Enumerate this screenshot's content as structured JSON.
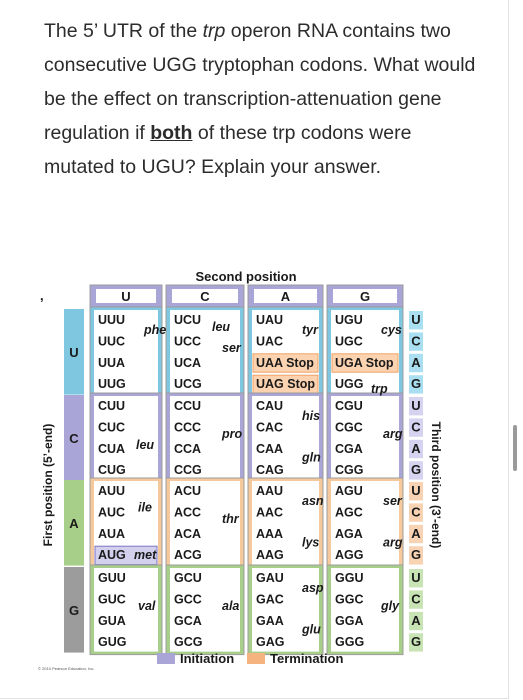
{
  "question": {
    "text_1": "The 5’ UTR of the ",
    "trp": "trp",
    "text_2": " operon RNA contains two consecutive UGG tryptophan codons. What would be the effect on transcription-attenuation gene regulation if ",
    "both": "both",
    "text_3": " of these trp codons were mutated to UGU? Explain your answer."
  },
  "figure": {
    "title": "Second position",
    "first_position_label": "First position (5’-end)",
    "third_position_label": "Third position (3’-end)",
    "bullet": ",",
    "second_bases": [
      "U",
      "C",
      "A",
      "G"
    ],
    "first_bases": [
      "U",
      "C",
      "A",
      "G"
    ],
    "third_bases": [
      "U",
      "C",
      "A",
      "G"
    ],
    "blocks": [
      [
        "UUU",
        "UUC",
        "UUA",
        "UUG",
        "UCU",
        "UCC",
        "UCA",
        "UCG",
        "UAU",
        "UAC",
        "UAA Stop",
        "UAG Stop",
        "UGU",
        "UGC",
        "UGA Stop",
        "UGG"
      ],
      [
        "CUU",
        "CUC",
        "CUA",
        "CUG",
        "CCU",
        "CCC",
        "CCA",
        "CCG",
        "CAU",
        "CAC",
        "CAA",
        "CAG",
        "CGU",
        "CGC",
        "CGA",
        "CGG"
      ],
      [
        "AUU",
        "AUC",
        "AUA",
        "AUG",
        "ACU",
        "ACC",
        "ACA",
        "ACG",
        "AAU",
        "AAC",
        "AAA",
        "AAG",
        "AGU",
        "AGC",
        "AGA",
        "AGG"
      ],
      [
        "GUU",
        "GUC",
        "GUA",
        "GUG",
        "GCU",
        "GCC",
        "GCA",
        "GCG",
        "GAU",
        "GAC",
        "GAA",
        "GAG",
        "GGU",
        "GGC",
        "GGA",
        "GGG"
      ]
    ],
    "amino_acids": {
      "phe": "phe",
      "leu": "leu",
      "ser": "ser",
      "tyr": "tyr",
      "cys": "cys",
      "trp": "trp",
      "pro": "pro",
      "his": "his",
      "gln": "gln",
      "arg": "arg",
      "ile": "ile",
      "met": "met",
      "thr": "thr",
      "asn": "asn",
      "lys": "lys",
      "val": "val",
      "ala": "ala",
      "asp": "asp",
      "glu": "glu",
      "gly": "gly"
    },
    "legend": {
      "initiation": "Initiation",
      "termination": "Termination"
    },
    "copyright": "© 2010 Pearson Education, Inc.",
    "colors": {
      "cyan": "#7fc6e0",
      "purple": "#a9a5d6",
      "orange": "#f0a266",
      "green": "#a8cf8a",
      "pink": "#e99aa8",
      "gray": "#9c9c9c",
      "cell": "#ffffff"
    }
  }
}
